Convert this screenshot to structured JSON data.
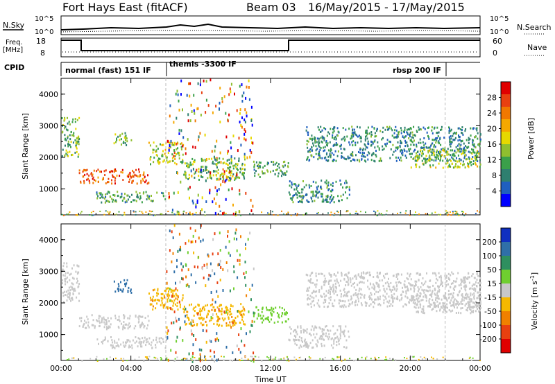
{
  "header": {
    "radar": "Fort Hays East (fitACF)",
    "beam": "Beam 03",
    "dates": "16/May/2015 - 17/May/2015"
  },
  "top_panels": {
    "nsky_label": "N.Sky",
    "nsky_ticks": [
      "10^5",
      "10^0"
    ],
    "nsearch_label": "N.Search",
    "freq_label": "Freq.",
    "freq_unit": "[MHz]",
    "freq_ticks": [
      "18",
      "8"
    ],
    "nave_label": "Nave",
    "nave_ticks": [
      "60",
      "0"
    ],
    "cpid_label": "CPID",
    "cpid_modes": [
      "normal (fast) 151 IF",
      "themis -3300 IF",
      "rbsp 200 IF"
    ]
  },
  "chart_data": [
    {
      "type": "heatmap",
      "title": "Power",
      "ylabel": "Slant Range [km]",
      "ylim": [
        180,
        4500
      ],
      "y_ticks": [
        "1000",
        "2000",
        "3000",
        "4000"
      ],
      "x_ticks": [
        "00:00",
        "04:00",
        "08:00",
        "12:00",
        "16:00",
        "20:00",
        "00:00"
      ],
      "xlim_hours": [
        0,
        24
      ],
      "colorbar": {
        "label": "Power [dB]",
        "ticks": [
          "4",
          "8",
          "12",
          "16",
          "20",
          "24",
          "28"
        ],
        "colors": [
          "#0000ff",
          "#1f5fbf",
          "#2e7f6f",
          "#3aa04a",
          "#8fbf2f",
          "#e6d800",
          "#f5a800",
          "#f07800",
          "#e84010",
          "#e00000"
        ]
      },
      "echo_regions": [
        {
          "t0": 0.0,
          "t1": 1.0,
          "r0": 2050,
          "r1": 3300,
          "value": 12
        },
        {
          "t0": 1.0,
          "t1": 5.0,
          "r0": 1200,
          "r1": 1650,
          "value": 24
        },
        {
          "t0": 5.0,
          "t1": 7.0,
          "r0": 1800,
          "r1": 2500,
          "value": 14
        },
        {
          "t0": 2.0,
          "t1": 6.0,
          "r0": 600,
          "r1": 950,
          "value": 10
        },
        {
          "t0": 3.0,
          "t1": 4.0,
          "r0": 2400,
          "r1": 2800,
          "value": 12
        },
        {
          "t0": 7.0,
          "t1": 10.5,
          "r0": 1300,
          "r1": 2000,
          "value": 12
        },
        {
          "t0": 9.0,
          "t1": 9.8,
          "r0": 1300,
          "r1": 1700,
          "value": 18
        },
        {
          "t0": 11.0,
          "t1": 13.0,
          "r0": 1400,
          "r1": 1900,
          "value": 10
        },
        {
          "t0": 13.0,
          "t1": 16.5,
          "r0": 600,
          "r1": 1300,
          "value": 8
        },
        {
          "t0": 14.0,
          "t1": 24.0,
          "r0": 1900,
          "r1": 3000,
          "value": 8
        },
        {
          "t0": 20.0,
          "t1": 24.0,
          "r0": 1700,
          "r1": 2300,
          "value": 14
        }
      ]
    },
    {
      "type": "heatmap",
      "title": "Velocity",
      "ylabel": "Slant Range [km]",
      "ylim": [
        180,
        4500
      ],
      "y_ticks": [
        "1000",
        "2000",
        "3000",
        "4000"
      ],
      "x_ticks": [
        "00:00",
        "04:00",
        "08:00",
        "12:00",
        "16:00",
        "20:00",
        "00:00"
      ],
      "xlabel": "Time UT",
      "xlim_hours": [
        0,
        24
      ],
      "colorbar": {
        "label": "Velocity [m s",
        "label_sup": "-1",
        "label_end": "]",
        "ticks": [
          "200",
          "100",
          "50",
          "15",
          "-15",
          "-50",
          "-100",
          "-200"
        ],
        "colors": [
          "#1030c0",
          "#2f6fa8",
          "#2e8f5f",
          "#6fcf2f",
          "#c8c8c8",
          "#f5b800",
          "#f08000",
          "#e84010",
          "#e00000"
        ]
      },
      "echo_regions": [
        {
          "t0": 0.0,
          "t1": 1.0,
          "r0": 2050,
          "r1": 3300,
          "value": 0
        },
        {
          "t0": 1.0,
          "t1": 5.0,
          "r0": 1200,
          "r1": 1650,
          "value": 0
        },
        {
          "t0": 3.0,
          "t1": 4.0,
          "r0": 2350,
          "r1": 2750,
          "value": 180
        },
        {
          "t0": 5.0,
          "t1": 7.0,
          "r0": 1800,
          "r1": 2500,
          "value": -40
        },
        {
          "t0": 2.0,
          "t1": 6.0,
          "r0": 600,
          "r1": 950,
          "value": 0
        },
        {
          "t0": 7.0,
          "t1": 10.5,
          "r0": 1300,
          "r1": 2000,
          "value": -40
        },
        {
          "t0": 11.0,
          "t1": 13.0,
          "r0": 1400,
          "r1": 1900,
          "value": 30
        },
        {
          "t0": 13.0,
          "t1": 16.5,
          "r0": 600,
          "r1": 1300,
          "value": 0
        },
        {
          "t0": 14.0,
          "t1": 24.0,
          "r0": 1900,
          "r1": 3000,
          "value": 0
        },
        {
          "t0": 20.0,
          "t1": 24.0,
          "r0": 1700,
          "r1": 2300,
          "value": 0
        }
      ]
    }
  ]
}
